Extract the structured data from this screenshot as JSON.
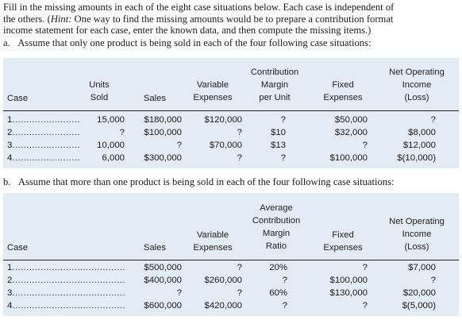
{
  "intro": {
    "line1": "Fill in the missing amounts in each of the eight case situations below. Each case is independent of",
    "line2_pre": "the others. (",
    "line2_hint": "Hint:",
    "line2_post": " One way to find the missing amounts would be to prepare a contribution format",
    "line3": "income statement for each case, enter the known data, and then compute the missing items.)"
  },
  "part_a": {
    "letter": "a.",
    "text": "Assume that only one product is being sold in each of the four following case situations:",
    "headers": {
      "case": "Case",
      "units": [
        "Units",
        "Sold"
      ],
      "sales": "Sales",
      "variable": [
        "Variable",
        "Expenses"
      ],
      "contribution": [
        "Contribution",
        "Margin",
        "per Unit"
      ],
      "fixed": [
        "Fixed",
        "Expenses"
      ],
      "noi": [
        "Net Operating",
        "Income",
        "(Loss)"
      ]
    },
    "rows": [
      {
        "case": "1",
        "units": "15,000",
        "sales": "$180,000",
        "variable": "$120,000",
        "cm": "?",
        "fixed": "$50,000",
        "noi": "?"
      },
      {
        "case": "2",
        "units": "?",
        "sales": "$100,000",
        "variable": "?",
        "cm": "$10",
        "fixed": "$32,000",
        "noi": "$8,000"
      },
      {
        "case": "3",
        "units": "10,000",
        "sales": "?",
        "variable": "$70,000",
        "cm": "$13",
        "fixed": "?",
        "noi": "$12,000"
      },
      {
        "case": "4",
        "units": "6,000",
        "sales": "$300,000",
        "variable": "?",
        "cm": "?",
        "fixed": "$100,000",
        "noi": "$(10,000)"
      }
    ]
  },
  "part_b": {
    "letter": "b.",
    "text": "Assume that more than one product is being sold in each of the four following case situations:",
    "headers": {
      "case": "Case",
      "sales": "Sales",
      "variable": [
        "Variable",
        "Expenses"
      ],
      "cmratio": [
        "Average",
        "Contribution",
        "Margin",
        "Ratio"
      ],
      "fixed": [
        "Fixed",
        "Expenses"
      ],
      "noi": [
        "Net Operating",
        "Income",
        "(Loss)"
      ]
    },
    "rows": [
      {
        "case": "1",
        "sales": "$500,000",
        "variable": "?",
        "ratio": "20%",
        "fixed": "?",
        "noi": "$7,000"
      },
      {
        "case": "2",
        "sales": "$400,000",
        "variable": "$260,000",
        "ratio": "?",
        "fixed": "$100,000",
        "noi": "?"
      },
      {
        "case": "3",
        "sales": "?",
        "variable": "?",
        "ratio": "60%",
        "fixed": "$130,000",
        "noi": "$20,000"
      },
      {
        "case": "4",
        "sales": "$600,000",
        "variable": "$420,000",
        "ratio": "?",
        "fixed": "?",
        "noi": "$(5,000)"
      }
    ]
  }
}
